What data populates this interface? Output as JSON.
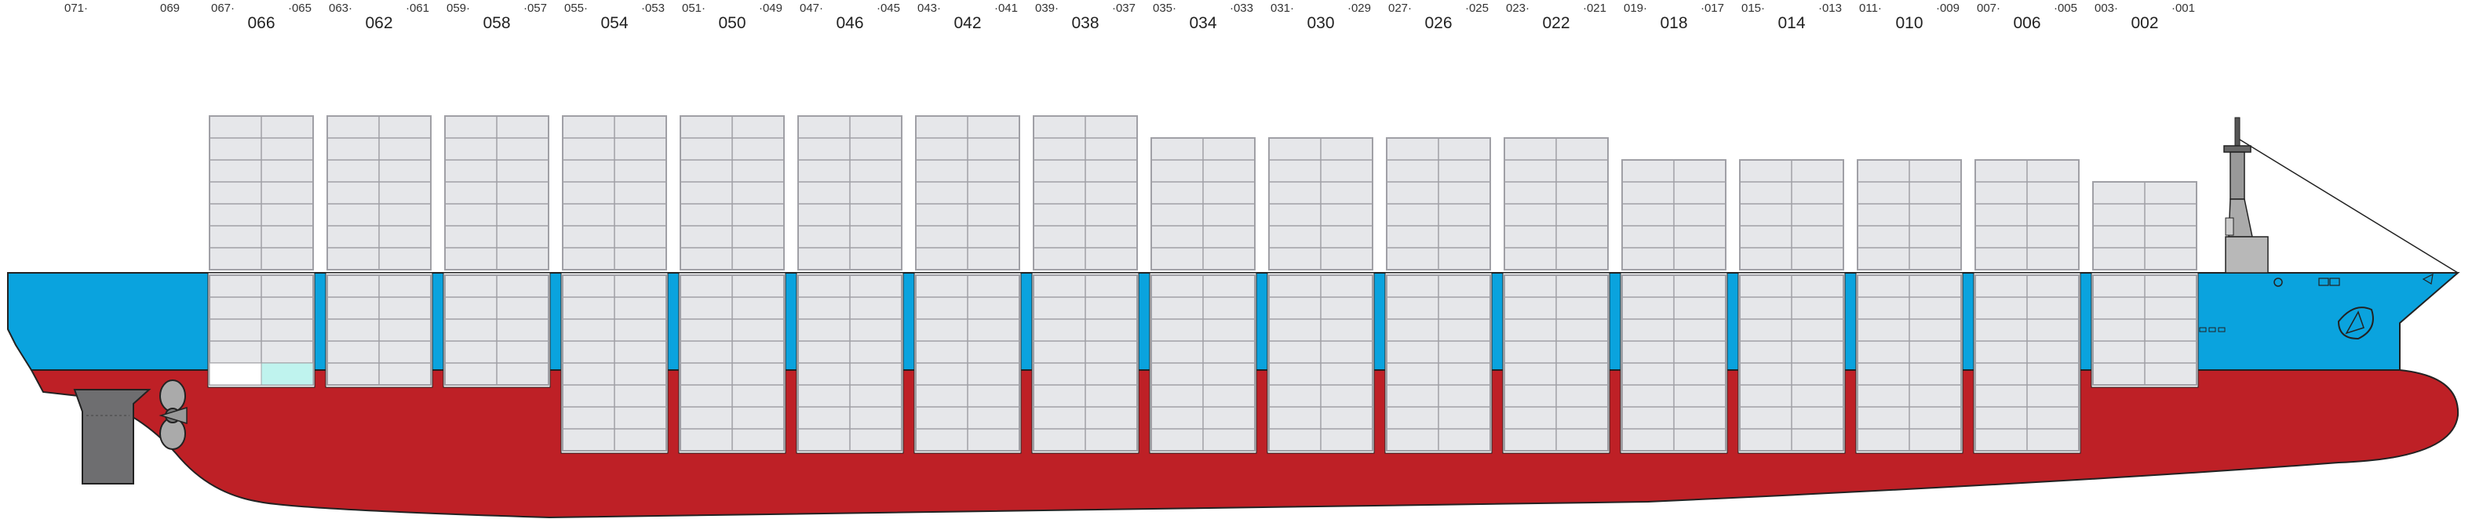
{
  "ship": {
    "hull_color": "#BE2026",
    "topside_color": "#0AA3DE",
    "container_color": "#E6E7EA",
    "container_line": "#A0A0A6",
    "reefer_highlight": "#BFF3EE"
  },
  "stray_labels": [
    {
      "text": "071·"
    },
    {
      "text": "069"
    }
  ],
  "bays": [
    {
      "odd_left": "067·",
      "odd_right": "·065",
      "even": "066",
      "deck_tiers": 7,
      "hold_tiers": 5,
      "deep": false
    },
    {
      "odd_left": "063·",
      "odd_right": "·061",
      "even": "062",
      "deck_tiers": 7,
      "hold_tiers": 5,
      "deep": false
    },
    {
      "odd_left": "059·",
      "odd_right": "·057",
      "even": "058",
      "deck_tiers": 7,
      "hold_tiers": 5,
      "deep": false
    },
    {
      "odd_left": "055·",
      "odd_right": "·053",
      "even": "054",
      "deck_tiers": 7,
      "hold_tiers": 8,
      "deep": true
    },
    {
      "odd_left": "051·",
      "odd_right": "·049",
      "even": "050",
      "deck_tiers": 7,
      "hold_tiers": 8,
      "deep": true
    },
    {
      "odd_left": "047·",
      "odd_right": "·045",
      "even": "046",
      "deck_tiers": 7,
      "hold_tiers": 8,
      "deep": true
    },
    {
      "odd_left": "043·",
      "odd_right": "·041",
      "even": "042",
      "deck_tiers": 7,
      "hold_tiers": 8,
      "deep": true
    },
    {
      "odd_left": "039·",
      "odd_right": "·037",
      "even": "038",
      "deck_tiers": 7,
      "hold_tiers": 8,
      "deep": true
    },
    {
      "odd_left": "035·",
      "odd_right": "·033",
      "even": "034",
      "deck_tiers": 6,
      "hold_tiers": 8,
      "deep": true
    },
    {
      "odd_left": "031·",
      "odd_right": "·029",
      "even": "030",
      "deck_tiers": 6,
      "hold_tiers": 8,
      "deep": true
    },
    {
      "odd_left": "027·",
      "odd_right": "·025",
      "even": "026",
      "deck_tiers": 6,
      "hold_tiers": 8,
      "deep": true
    },
    {
      "odd_left": "023·",
      "odd_right": "·021",
      "even": "022",
      "deck_tiers": 6,
      "hold_tiers": 8,
      "deep": true
    },
    {
      "odd_left": "019·",
      "odd_right": "·017",
      "even": "018",
      "deck_tiers": 5,
      "hold_tiers": 8,
      "deep": true
    },
    {
      "odd_left": "015·",
      "odd_right": "·013",
      "even": "014",
      "deck_tiers": 5,
      "hold_tiers": 8,
      "deep": true
    },
    {
      "odd_left": "011·",
      "odd_right": "·009",
      "even": "010",
      "deck_tiers": 5,
      "hold_tiers": 8,
      "deep": true
    },
    {
      "odd_left": "007·",
      "odd_right": "·005",
      "even": "006",
      "deck_tiers": 5,
      "hold_tiers": 8,
      "deep": true
    },
    {
      "odd_left": "003·",
      "odd_right": "·001",
      "even": "002",
      "deck_tiers": 4,
      "hold_tiers": 5,
      "deep": false
    }
  ],
  "icons": [
    "propeller-icon",
    "rudder-icon",
    "bridge-mast-icon",
    "bulbous-bow-icon",
    "maersk-star-icon"
  ]
}
